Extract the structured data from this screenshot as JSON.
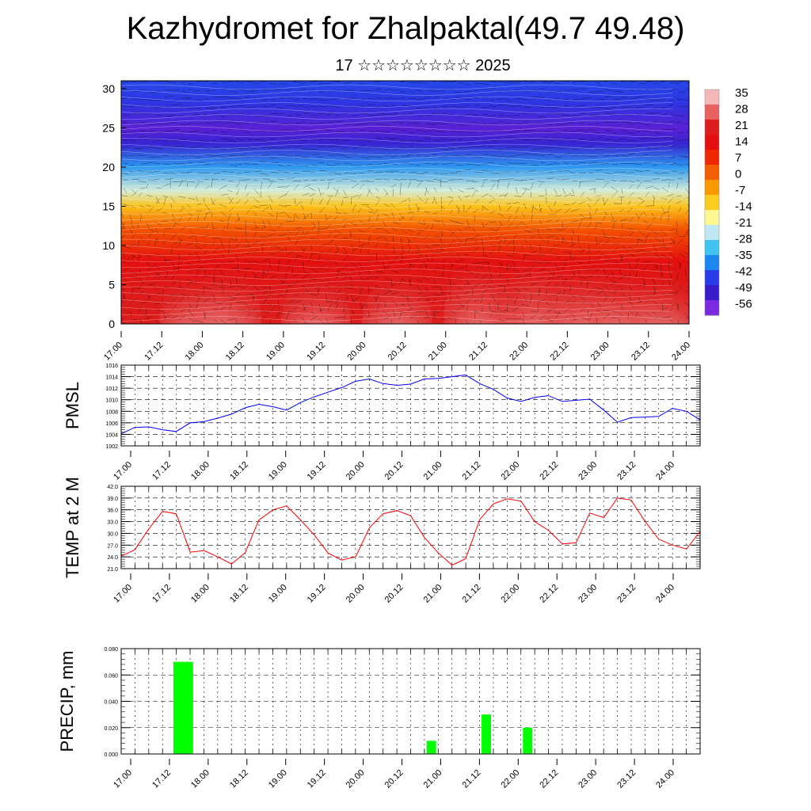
{
  "title": "Kazhydromet for Zhalpaktal(49.7 49.48)",
  "subtitle": "17 ☆☆☆☆☆☆☆☆ 2025",
  "colors": {
    "pmsl": "#0000ff",
    "temp": "#ff0000",
    "precip": "#00ff00"
  },
  "chart_data": [
    {
      "type": "heatmap",
      "name": "upper-air-section",
      "x_ticks": [
        "17.00",
        "17.12",
        "18.00",
        "18.12",
        "19.00",
        "19.12",
        "20.00",
        "20.12",
        "21.00",
        "21.12",
        "22.00",
        "22.12",
        "23.00",
        "23.12",
        "24.00"
      ],
      "y_ticks": [
        0,
        5,
        10,
        15,
        20,
        25,
        30
      ],
      "ylim": [
        0,
        31
      ],
      "colorbar_labels": [
        "35",
        "28",
        "21",
        "14",
        "7",
        "0",
        "-7",
        "-14",
        "-21",
        "-28",
        "-35",
        "-42",
        "-49",
        "-56"
      ],
      "colorbar_colors": [
        "#f4b8b8",
        "#e86060",
        "#dd1c1c",
        "#e41010",
        "#ee2800",
        "#f55e00",
        "#fa9800",
        "#fccc20",
        "#fff890",
        "#bfe8f4",
        "#40c4f0",
        "#1a88f0",
        "#2a3ce8",
        "#3a1ccc",
        "#7a2ae0"
      ],
      "contour_profile": [
        {
          "z": 0,
          "v": 22
        },
        {
          "z": 4,
          "v": 21
        },
        {
          "z": 8,
          "v": 16
        },
        {
          "z": 12,
          "v": 4
        },
        {
          "z": 15,
          "v": -10
        },
        {
          "z": 17,
          "v": -20
        },
        {
          "z": 20,
          "v": -34
        },
        {
          "z": 23,
          "v": -52
        },
        {
          "z": 25,
          "v": -58
        },
        {
          "z": 28,
          "v": -48
        },
        {
          "z": 31,
          "v": -44
        }
      ],
      "warm_bubbles": [
        {
          "x": 0.9,
          "v": 30
        },
        {
          "x": 1.3,
          "v": 32
        },
        {
          "x": 2.4,
          "v": 30
        },
        {
          "x": 3.4,
          "v": 31
        },
        {
          "x": 4.4,
          "v": 36
        },
        {
          "x": 5.1,
          "v": 36
        },
        {
          "x": 5.7,
          "v": 34
        },
        {
          "x": 6.2,
          "v": 31
        },
        {
          "x": 6.7,
          "v": 30
        }
      ]
    },
    {
      "type": "line",
      "name": "pmsl",
      "ylabel": "PMSL",
      "x_ticks": [
        "17.00",
        "17.12",
        "18.00",
        "18.12",
        "19.00",
        "19.12",
        "20.00",
        "20.12",
        "21.00",
        "21.12",
        "22.00",
        "22.12",
        "23.00",
        "23.12",
        "24.00"
      ],
      "y_ticks": [
        1002,
        1004,
        1006,
        1008,
        1010,
        1012,
        1014,
        1016
      ],
      "ylim": [
        1002,
        1016
      ],
      "xlim": [
        0,
        14
      ],
      "x": [
        0,
        0.33,
        0.67,
        1,
        1.33,
        1.67,
        2,
        2.33,
        2.67,
        3,
        3.33,
        3.67,
        4,
        4.33,
        4.67,
        5,
        5.33,
        5.67,
        6,
        6.33,
        6.67,
        7,
        7.33,
        7.67,
        8,
        8.33,
        8.67,
        9,
        9.33,
        9.67,
        10,
        10.33,
        10.67,
        11,
        11.33,
        11.67,
        12,
        12.33,
        12.67,
        13,
        13.33,
        13.67,
        14
      ],
      "values": [
        1004.1,
        1005.2,
        1005.3,
        1004.8,
        1004.5,
        1006.0,
        1006.2,
        1006.8,
        1007.5,
        1008.6,
        1009.2,
        1008.8,
        1008.2,
        1009.5,
        1010.5,
        1011.3,
        1012.1,
        1013.2,
        1013.6,
        1012.8,
        1012.5,
        1012.7,
        1013.6,
        1013.7,
        1014.0,
        1014.3,
        1012.8,
        1011.8,
        1010.3,
        1009.7,
        1010.4,
        1010.7,
        1009.7,
        1009.9,
        1010.1,
        1008.2,
        1006.1,
        1006.9,
        1007.0,
        1007.1,
        1008.5,
        1008.0,
        1006.5
      ]
    },
    {
      "type": "line",
      "name": "temperature-2m",
      "ylabel": "TEMP at 2 M",
      "x_ticks": [
        "17.00",
        "17.12",
        "18.00",
        "18.12",
        "19.00",
        "19.12",
        "20.00",
        "20.12",
        "21.00",
        "21.12",
        "22.00",
        "22.12",
        "23.00",
        "23.12",
        "24.00"
      ],
      "y_ticks": [
        "21.0",
        "24.0",
        "27.0",
        "30.0",
        "33.0",
        "36.0",
        "39.0",
        "42.0"
      ],
      "ylim": [
        21,
        42
      ],
      "xlim": [
        0,
        14
      ],
      "x": [
        0,
        0.33,
        0.67,
        1,
        1.33,
        1.67,
        2,
        2.33,
        2.67,
        3,
        3.33,
        3.67,
        4,
        4.33,
        4.67,
        5,
        5.33,
        5.67,
        6,
        6.33,
        6.67,
        7,
        7.33,
        7.67,
        8,
        8.33,
        8.67,
        9,
        9.33,
        9.67,
        10,
        10.33,
        10.67,
        11,
        11.33,
        11.67,
        12,
        12.33,
        12.67,
        13,
        13.33,
        13.67,
        14
      ],
      "values": [
        24.2,
        25.8,
        31.2,
        35.6,
        35.0,
        25.2,
        25.6,
        24.0,
        22.2,
        25.1,
        33.4,
        36.0,
        37.0,
        33.5,
        29.6,
        25.0,
        23.2,
        24.0,
        31.4,
        35.0,
        35.8,
        34.5,
        29.0,
        25.0,
        21.9,
        23.5,
        33.5,
        37.5,
        38.8,
        38.2,
        33.0,
        30.8,
        27.3,
        27.6,
        35.2,
        34.0,
        39.0,
        38.5,
        33.0,
        28.5,
        27.0,
        26.0,
        30.5
      ]
    },
    {
      "type": "bar",
      "name": "precipitation",
      "ylabel": "PRECIP, mm",
      "x_ticks": [
        "17.00",
        "17.12",
        "18.00",
        "18.12",
        "19.00",
        "19.12",
        "20.00",
        "20.12",
        "21.00",
        "21.12",
        "22.00",
        "22.12",
        "23.00",
        "23.12",
        "24.00"
      ],
      "y_ticks": [
        "0.000",
        "0.020",
        "0.040",
        "0.060",
        "0.080"
      ],
      "ylim": [
        0,
        0.08
      ],
      "xlim": [
        0,
        14
      ],
      "bars": [
        {
          "x": 1.5,
          "value": 0.07
        },
        {
          "x": 7.5,
          "value": 0.01
        },
        {
          "x": 8.83,
          "value": 0.03
        },
        {
          "x": 9.83,
          "value": 0.02
        }
      ]
    }
  ]
}
